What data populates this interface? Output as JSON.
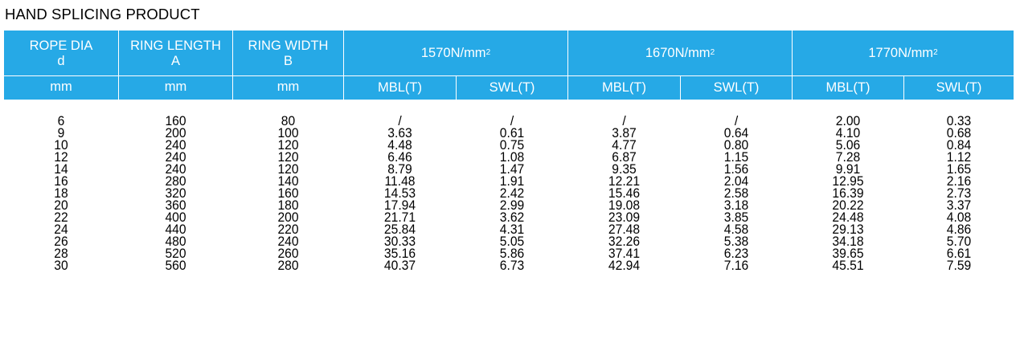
{
  "title": "HAND SPLICING PRODUCT",
  "header": {
    "rope_dia": "ROPE DIA",
    "rope_dia_sym": "d",
    "ring_length": "RING LENGTH",
    "ring_length_sym": "A",
    "ring_width": "RING WIDTH",
    "ring_width_sym": "B",
    "grade1": "1570N/mm",
    "grade2": "1670N/mm",
    "grade3": "1770N/mm",
    "grade_sup": "2",
    "unit_mm": "mm",
    "mbl": "MBL(T)",
    "swl": "SWL(T)",
    "header_bg": "#26a9e6"
  },
  "columns": {
    "d": [
      "6",
      "9",
      "10",
      "12",
      "14",
      "16",
      "18",
      "20",
      "22",
      "24",
      "26",
      "28",
      "30"
    ],
    "a": [
      "160",
      "200",
      "240",
      "240",
      "240",
      "280",
      "320",
      "360",
      "400",
      "440",
      "480",
      "520",
      "560"
    ],
    "b": [
      "80",
      "100",
      "120",
      "120",
      "120",
      "140",
      "160",
      "180",
      "200",
      "220",
      "240",
      "260",
      "280"
    ],
    "mbl1570": [
      "/",
      "3.63",
      "4.48",
      "6.46",
      "8.79",
      "11.48",
      "14.53",
      "17.94",
      "21.71",
      "25.84",
      "30.33",
      "35.16",
      "40.37"
    ],
    "swl1570": [
      "/",
      "0.61",
      "0.75",
      "1.08",
      "1.47",
      "1.91",
      "2.42",
      "2.99",
      "3.62",
      "4.31",
      "5.05",
      "5.86",
      "6.73"
    ],
    "mbl1670": [
      "/",
      "3.87",
      "4.77",
      "6.87",
      "9.35",
      "12.21",
      "15.46",
      "19.08",
      "23.09",
      "27.48",
      "32.26",
      "37.41",
      "42.94"
    ],
    "swl1670": [
      "/",
      "0.64",
      "0.80",
      "1.15",
      "1.56",
      "2.04",
      "2.58",
      "3.18",
      "3.85",
      "4.58",
      "5.38",
      "6.23",
      "7.16"
    ],
    "mbl1770": [
      "2.00",
      "4.10",
      "5.06",
      "7.28",
      "9.91",
      "12.95",
      "16.39",
      "20.22",
      "24.48",
      "29.13",
      "34.18",
      "39.65",
      "45.51"
    ],
    "swl1770": [
      "0.33",
      "0.68",
      "0.84",
      "1.12",
      "1.65",
      "2.16",
      "2.73",
      "3.37",
      "4.08",
      "4.86",
      "5.70",
      "6.61",
      "7.59"
    ]
  }
}
